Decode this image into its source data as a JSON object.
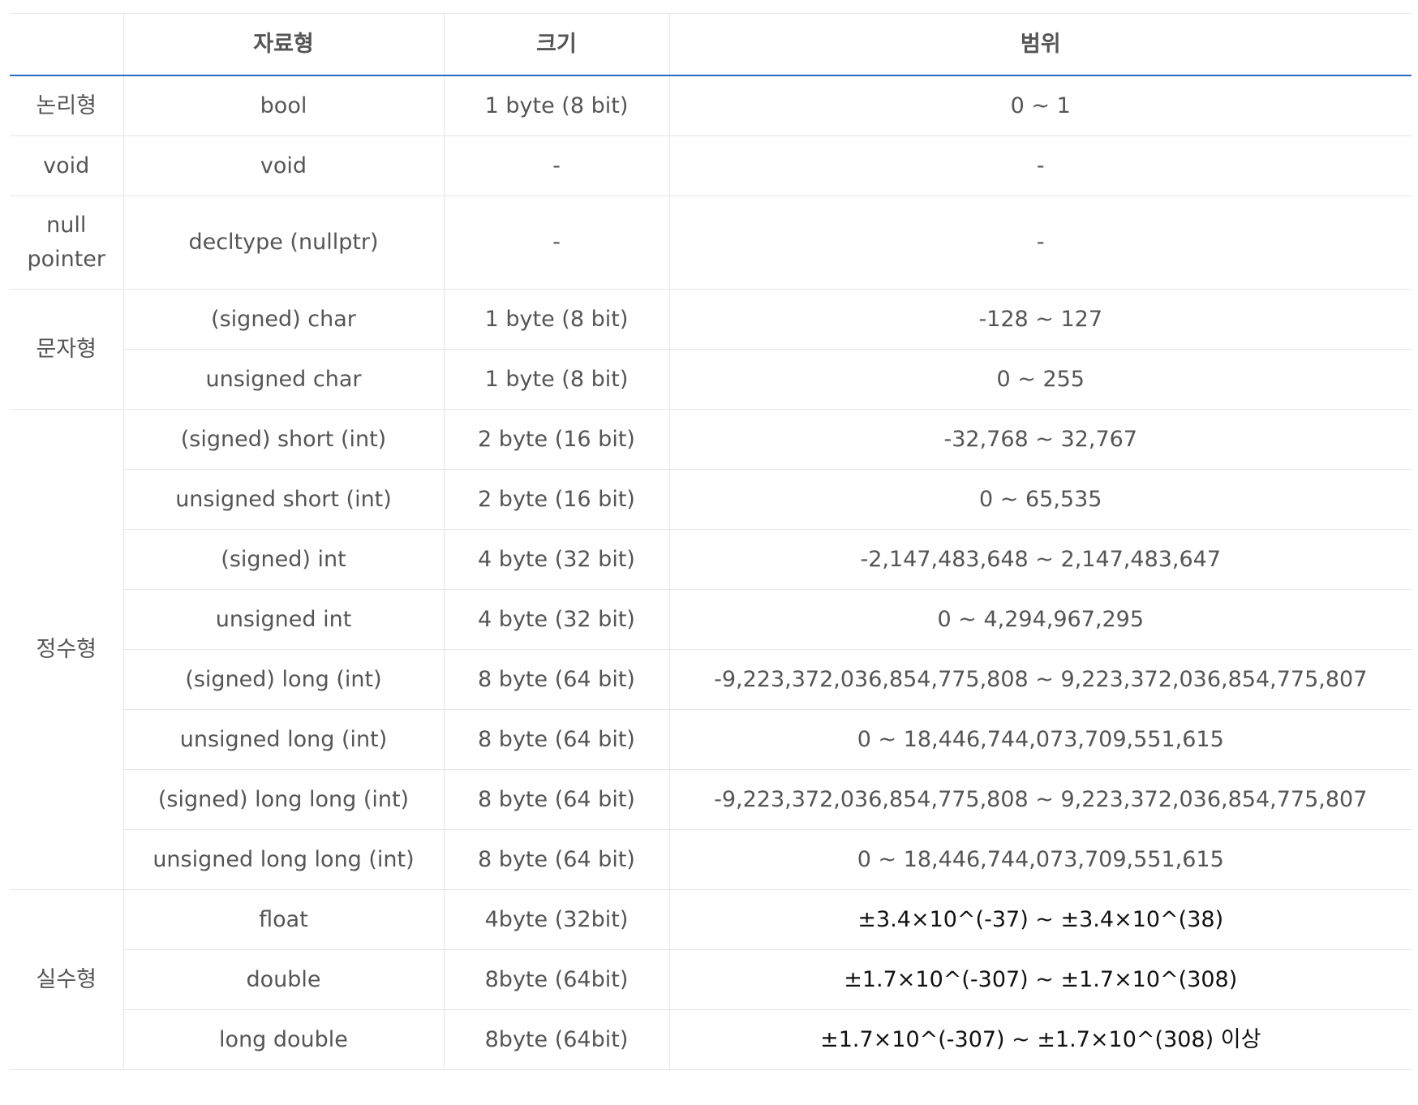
{
  "header": {
    "category": "",
    "type": "자료형",
    "size": "크기",
    "range": "범위"
  },
  "groups": [
    {
      "category": "논리형",
      "rows": [
        {
          "type": "bool",
          "size": "1 byte (8 bit)",
          "range": "0 ~ 1"
        }
      ]
    },
    {
      "category": "void",
      "rows": [
        {
          "type": "void",
          "size": "-",
          "range": "-"
        }
      ]
    },
    {
      "category": "null pointer",
      "rows": [
        {
          "type": "decltype (nullptr)",
          "size": "-",
          "range": "-"
        }
      ]
    },
    {
      "category": "문자형",
      "rows": [
        {
          "type": "(signed) char",
          "size": "1 byte (8 bit)",
          "range": "-128 ~ 127"
        },
        {
          "type": "unsigned char",
          "size": "1 byte (8 bit)",
          "range": "0 ~ 255"
        }
      ]
    },
    {
      "category": "정수형",
      "rows": [
        {
          "type": "(signed) short (int)",
          "size": "2 byte (16 bit)",
          "range": "-32,768 ~ 32,767"
        },
        {
          "type": "unsigned short (int)",
          "size": "2 byte (16 bit)",
          "range": "0 ~ 65,535"
        },
        {
          "type": "(signed) int",
          "size": "4 byte (32 bit)",
          "range": "-2,147,483,648 ~ 2,147,483,647"
        },
        {
          "type": "unsigned int",
          "size": "4 byte (32 bit)",
          "range": "0 ~ 4,294,967,295"
        },
        {
          "type": "(signed) long (int)",
          "size": "8 byte (64 bit)",
          "range": "-9,223,372,036,854,775,808 ~ 9,223,372,036,854,775,807"
        },
        {
          "type": "unsigned long (int)",
          "size": "8 byte (64 bit)",
          "range": "0 ~ 18,446,744,073,709,551,615"
        },
        {
          "type": "(signed) long long (int)",
          "size": "8 byte (64 bit)",
          "range": "-9,223,372,036,854,775,808 ~ 9,223,372,036,854,775,807"
        },
        {
          "type": "unsigned long long (int)",
          "size": "8 byte (64 bit)",
          "range": "0 ~ 18,446,744,073,709,551,615"
        }
      ]
    },
    {
      "category": "실수형",
      "rows": [
        {
          "type": "float",
          "size": "4byte (32bit)",
          "range": "±3.4×10^(-37) ~ ±3.4×10^(38)"
        },
        {
          "type": "double",
          "size": "8byte (64bit)",
          "range": "±1.7×10^(-307) ~ ±1.7×10^(308)"
        },
        {
          "type": "long double",
          "size": "8byte (64bit)",
          "range": "±1.7×10^(-307) ~ ±1.7×10^(308) 이상"
        }
      ]
    }
  ]
}
